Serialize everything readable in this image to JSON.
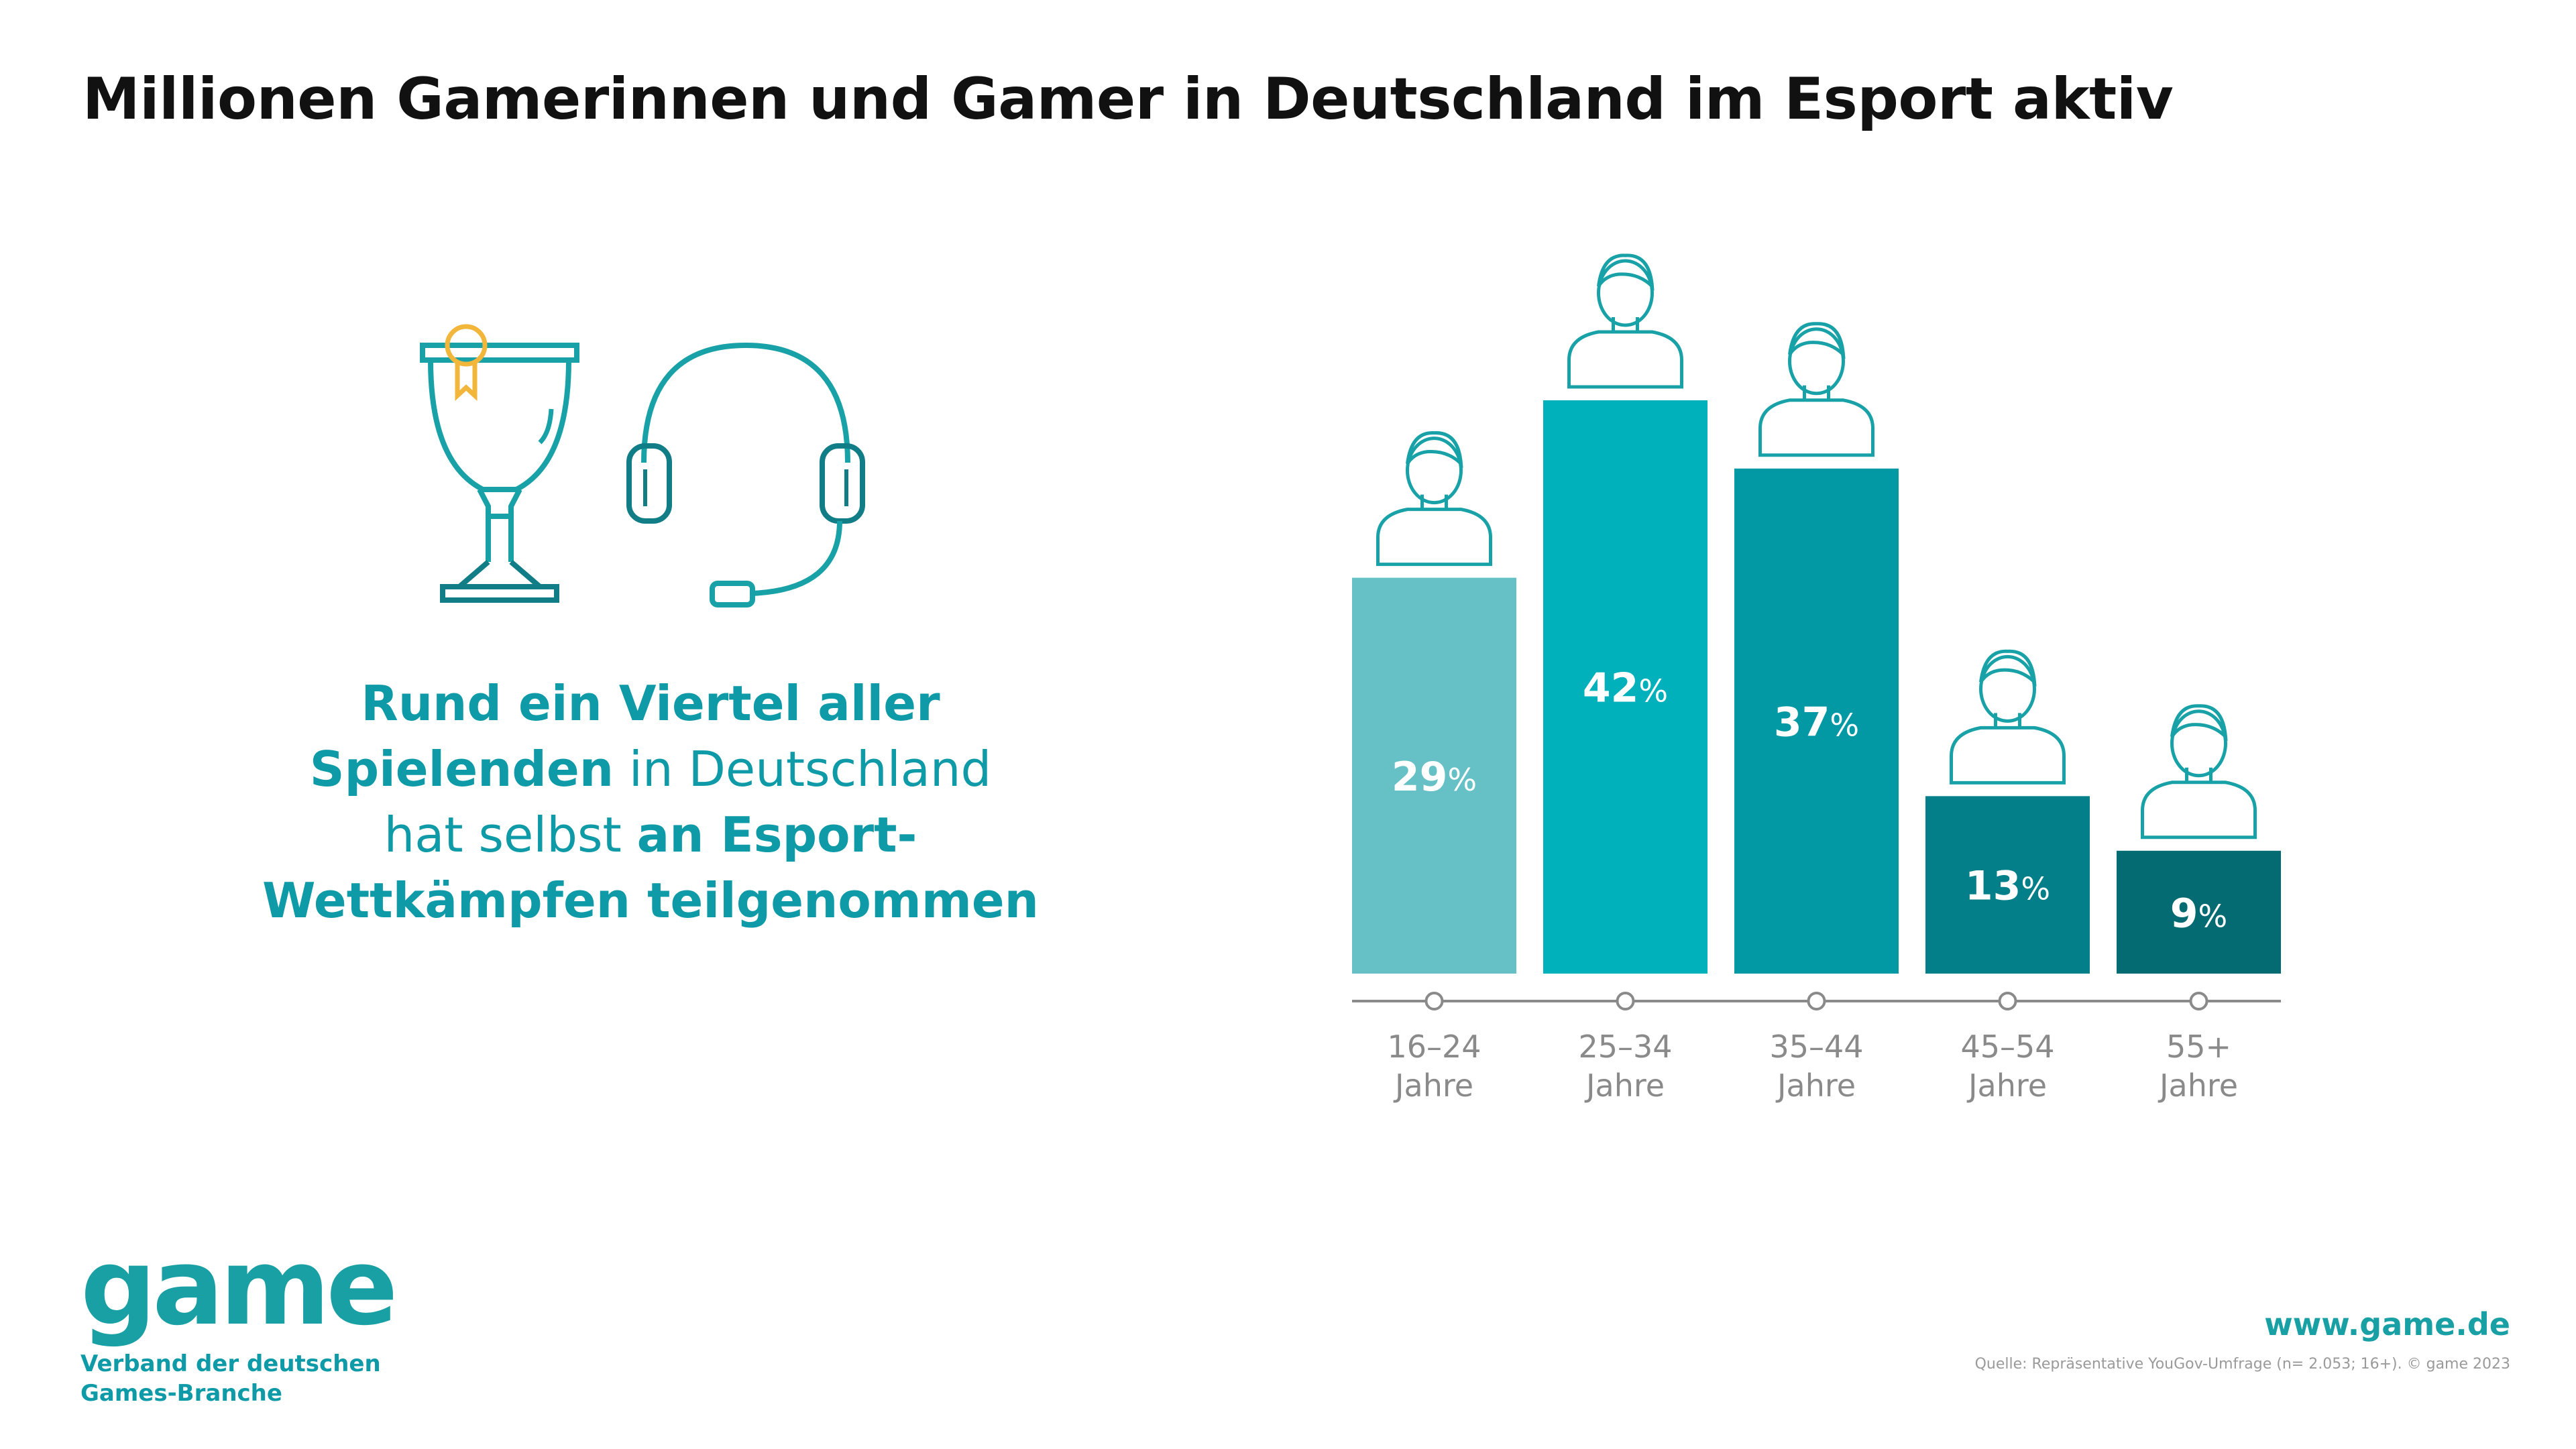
{
  "title": "Millionen Gamerinnen und Gamer in Deutschland im Esport aktiv",
  "headline": {
    "l1_bold": "Rund ein Viertel aller",
    "l2_bold": "Spielenden",
    "l2_rest": " in Deutschland",
    "l3_rest": "hat selbst ",
    "l3_bold": "an Esport-",
    "l4_bold": "Wettkämpfen teilgenommen"
  },
  "icons": [
    "trophy-icon",
    "headset-icon",
    "person-icon"
  ],
  "colors": {
    "title": "#111111",
    "accent": "#0e9aa7",
    "bars": [
      "#66c1c6",
      "#00b0bb",
      "#0399a4",
      "#037f89",
      "#046b73"
    ],
    "axis": "#8a8a8a",
    "icon_line": "#18a2a8",
    "ribbon": "#f2b63b"
  },
  "chart_data": {
    "type": "bar",
    "categories": [
      "16–24 Jahre",
      "25–34 Jahre",
      "35–44 Jahre",
      "45–54 Jahre",
      "55+ Jahre"
    ],
    "category_lines": [
      [
        "16–24",
        "Jahre"
      ],
      [
        "25–34",
        "Jahre"
      ],
      [
        "35–44",
        "Jahre"
      ],
      [
        "45–54",
        "Jahre"
      ],
      [
        "55+",
        "Jahre"
      ]
    ],
    "values": [
      29,
      42,
      37,
      13,
      9
    ],
    "value_labels": [
      "29",
      "42",
      "37",
      "13",
      "9"
    ],
    "unit": "%",
    "ylim": [
      0,
      42
    ],
    "grid": false,
    "legend": "none"
  },
  "logo": {
    "word": "game",
    "line1": "Verband der deutschen",
    "line2": "Games-Branche"
  },
  "website": "www.game.de",
  "source": "Quelle: Repräsentative YouGov-Umfrage (n= 2.053; 16+). © game 2023"
}
